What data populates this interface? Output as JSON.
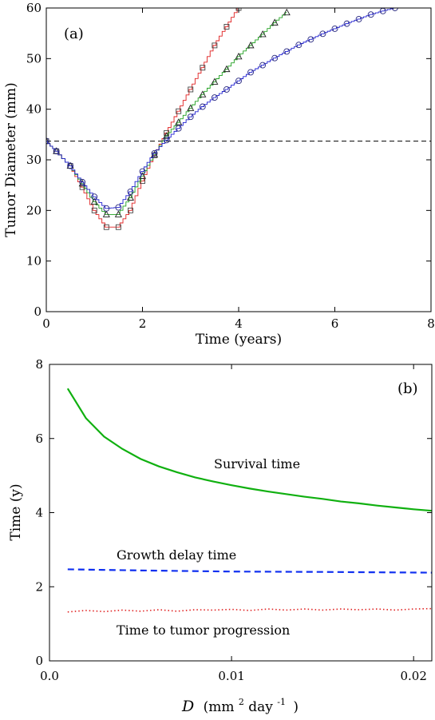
{
  "chart_data": [
    {
      "type": "line",
      "panel_label": "(a)",
      "xlabel": "Time (years)",
      "ylabel": "Tumor Diameter (mm)",
      "xlim": [
        0,
        8
      ],
      "ylim": [
        0,
        60
      ],
      "xticks": [
        "0",
        "2",
        "4",
        "6",
        "8"
      ],
      "yticks": [
        "0",
        "10",
        "20",
        "30",
        "40",
        "50",
        "60"
      ],
      "reference_line": {
        "y": 33.7,
        "style": "dashed",
        "color": "#000000"
      },
      "series": [
        {
          "color": "#e02020",
          "marker": "square",
          "x": [
            0,
            0.21,
            0.5,
            0.75,
            1.0,
            1.25,
            1.5,
            1.75,
            2.0,
            2.25,
            2.5,
            2.75,
            3.0,
            3.25,
            3.5,
            3.75,
            4.0
          ],
          "y": [
            33.7,
            31.7,
            28.8,
            24.6,
            20.0,
            16.7,
            16.7,
            20.0,
            25.8,
            30.9,
            35.3,
            39.6,
            43.9,
            48.2,
            52.6,
            56.3,
            60.0
          ]
        },
        {
          "color": "#20a020",
          "marker": "triangle",
          "x": [
            0,
            0.21,
            0.5,
            0.75,
            1.0,
            1.25,
            1.5,
            1.75,
            2.0,
            2.25,
            2.5,
            2.75,
            3.0,
            3.25,
            3.5,
            3.75,
            4.0,
            4.25,
            4.5,
            4.75,
            5.0
          ],
          "y": [
            33.7,
            31.7,
            28.8,
            25.3,
            21.7,
            19.2,
            19.2,
            22.5,
            26.8,
            31.0,
            34.7,
            37.4,
            40.2,
            42.9,
            45.4,
            47.9,
            50.4,
            52.6,
            54.8,
            57.1,
            59.1
          ]
        },
        {
          "color": "#2020d0",
          "marker": "circle",
          "x": [
            0,
            0.21,
            0.5,
            0.75,
            1.0,
            1.25,
            1.5,
            1.75,
            2.0,
            2.25,
            2.5,
            2.75,
            3.0,
            3.25,
            3.5,
            3.75,
            4.0,
            4.25,
            4.5,
            4.75,
            5.0,
            5.25,
            5.5,
            5.75,
            6.0,
            6.25,
            6.5,
            6.75,
            7.0,
            7.25
          ],
          "y": [
            33.7,
            31.7,
            28.8,
            25.6,
            22.7,
            20.4,
            20.6,
            23.7,
            27.7,
            31.3,
            33.9,
            36.2,
            38.5,
            40.5,
            42.3,
            43.9,
            45.6,
            47.3,
            48.7,
            50.1,
            51.4,
            52.7,
            53.8,
            54.9,
            55.9,
            56.9,
            57.8,
            58.7,
            59.4,
            60.0
          ]
        }
      ]
    },
    {
      "type": "line",
      "panel_label": "(b)",
      "xlabel_italic": "D",
      "xlabel_unit_open": "(mm",
      "xlabel_unit_sup1": "2",
      "xlabel_unit_mid": "day",
      "xlabel_unit_sup2": "-1",
      "xlabel_unit_close": ")",
      "ylabel": "Time (y)",
      "xlim": [
        0,
        0.021
      ],
      "ylim": [
        0,
        8
      ],
      "xticks": [
        "0.0",
        "0.01",
        "0.02"
      ],
      "xtick_values": [
        0,
        0.01,
        0.02
      ],
      "yticks": [
        "0",
        "2",
        "4",
        "6",
        "8"
      ],
      "series": [
        {
          "annotation": "Survival time",
          "color": "#10b010",
          "style": "solid",
          "x": [
            0.001,
            0.002,
            0.003,
            0.004,
            0.005,
            0.006,
            0.007,
            0.008,
            0.009,
            0.01,
            0.011,
            0.012,
            0.013,
            0.014,
            0.015,
            0.016,
            0.017,
            0.018,
            0.019,
            0.02,
            0.021
          ],
          "y": [
            7.35,
            6.55,
            6.05,
            5.72,
            5.45,
            5.25,
            5.09,
            4.95,
            4.84,
            4.74,
            4.65,
            4.57,
            4.5,
            4.43,
            4.37,
            4.3,
            4.25,
            4.19,
            4.14,
            4.09,
            4.05
          ]
        },
        {
          "annotation": "Growth delay time",
          "color": "#1030f0",
          "style": "dashed",
          "x": [
            0.001,
            0.005,
            0.01,
            0.015,
            0.021
          ],
          "y": [
            2.47,
            2.44,
            2.41,
            2.4,
            2.38
          ]
        },
        {
          "annotation": "Time to tumor progression",
          "color": "#e02020",
          "style": "dotted",
          "x": [
            0.001,
            0.002,
            0.003,
            0.004,
            0.005,
            0.006,
            0.007,
            0.008,
            0.009,
            0.01,
            0.011,
            0.012,
            0.013,
            0.014,
            0.015,
            0.016,
            0.017,
            0.018,
            0.019,
            0.02,
            0.021
          ],
          "y": [
            1.32,
            1.36,
            1.33,
            1.37,
            1.34,
            1.38,
            1.34,
            1.38,
            1.37,
            1.39,
            1.36,
            1.4,
            1.37,
            1.4,
            1.37,
            1.4,
            1.38,
            1.4,
            1.37,
            1.4,
            1.41
          ]
        }
      ]
    }
  ]
}
